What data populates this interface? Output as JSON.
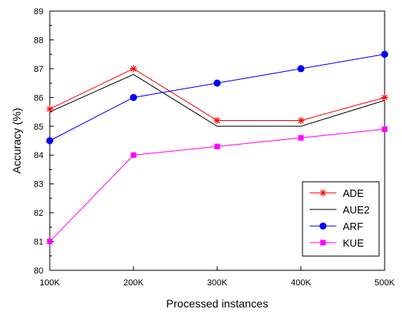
{
  "chart_data": {
    "type": "line",
    "xlabel": "Processed instances",
    "ylabel": "Accuracy (%)",
    "categories": [
      "100K",
      "200K",
      "300K",
      "400K",
      "500K"
    ],
    "ylim": [
      80,
      89
    ],
    "yticks": [
      80,
      81,
      82,
      83,
      84,
      85,
      86,
      87,
      88,
      89
    ],
    "grid": false,
    "legend_position": "bottom-right",
    "series": [
      {
        "name": "ADE",
        "color": "#ff0000",
        "marker": "asterisk",
        "values": [
          85.6,
          87.0,
          85.2,
          85.2,
          86.0
        ]
      },
      {
        "name": "AUE2",
        "color": "#000000",
        "marker": "none",
        "values": [
          85.5,
          86.8,
          85.0,
          85.0,
          85.9
        ]
      },
      {
        "name": "ARF",
        "color": "#0000ff",
        "marker": "circle",
        "values": [
          84.5,
          86.0,
          86.5,
          87.0,
          87.5
        ]
      },
      {
        "name": "KUE",
        "color": "#ff00ff",
        "marker": "square",
        "values": [
          81.0,
          84.0,
          84.3,
          84.6,
          84.9
        ]
      }
    ]
  }
}
